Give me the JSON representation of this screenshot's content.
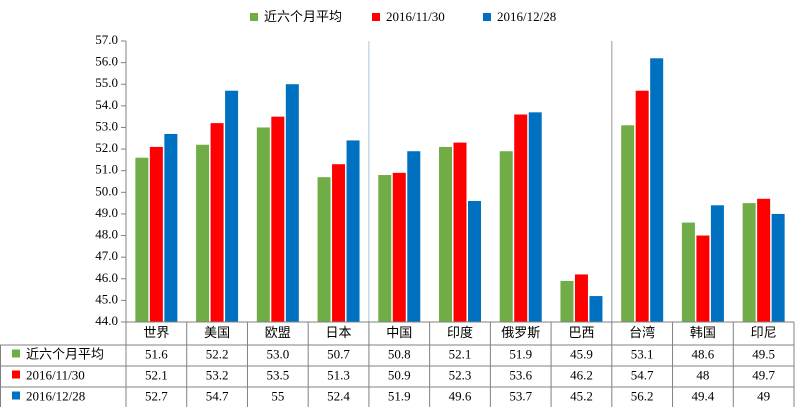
{
  "chart_data": {
    "type": "bar",
    "categories": [
      "世界",
      "美国",
      "欧盟",
      "日本",
      "中国",
      "印度",
      "俄罗斯",
      "巴西",
      "台湾",
      "韩国",
      "印尼"
    ],
    "series": [
      {
        "name": "近六个月平均",
        "color": "#70ad47",
        "values": [
          51.6,
          52.2,
          53.0,
          50.7,
          50.8,
          52.1,
          51.9,
          45.9,
          53.1,
          48.6,
          49.5
        ],
        "value_labels": [
          "51.6",
          "52.2",
          "53.0",
          "50.7",
          "50.8",
          "52.1",
          "51.9",
          "45.9",
          "53.1",
          "48.6",
          "49.5"
        ]
      },
      {
        "name": "2016/11/30",
        "color": "#ff0000",
        "values": [
          52.1,
          53.2,
          53.5,
          51.3,
          50.9,
          52.3,
          53.6,
          46.2,
          54.7,
          48,
          49.7
        ],
        "value_labels": [
          "52.1",
          "53.2",
          "53.5",
          "51.3",
          "50.9",
          "52.3",
          "53.6",
          "46.2",
          "54.7",
          "48",
          "49.7"
        ]
      },
      {
        "name": "2016/12/28",
        "color": "#0070c0",
        "values": [
          52.7,
          54.7,
          55,
          52.4,
          51.9,
          49.6,
          53.7,
          45.2,
          56.2,
          49.4,
          49
        ],
        "value_labels": [
          "52.7",
          "54.7",
          "55",
          "52.4",
          "51.9",
          "49.6",
          "53.7",
          "45.2",
          "56.2",
          "49.4",
          "49"
        ]
      }
    ],
    "ylim": [
      44,
      57
    ],
    "yticks": [
      {
        "value": 44,
        "label": "44.0"
      },
      {
        "value": 45,
        "label": "45.0"
      },
      {
        "value": 46,
        "label": "46.0"
      },
      {
        "value": 47,
        "label": "47.0"
      },
      {
        "value": 48,
        "label": "48.0"
      },
      {
        "value": 49,
        "label": "49.0"
      },
      {
        "value": 50,
        "label": "50.0"
      },
      {
        "value": 51,
        "label": "51.0"
      },
      {
        "value": 52,
        "label": "52.0"
      },
      {
        "value": 53,
        "label": "53.0"
      },
      {
        "value": 54,
        "label": "54.0"
      },
      {
        "value": 55,
        "label": "55.0"
      },
      {
        "value": 56,
        "label": "56.0"
      },
      {
        "value": 57,
        "label": "57.0"
      }
    ],
    "grid": false,
    "legend": "top"
  }
}
